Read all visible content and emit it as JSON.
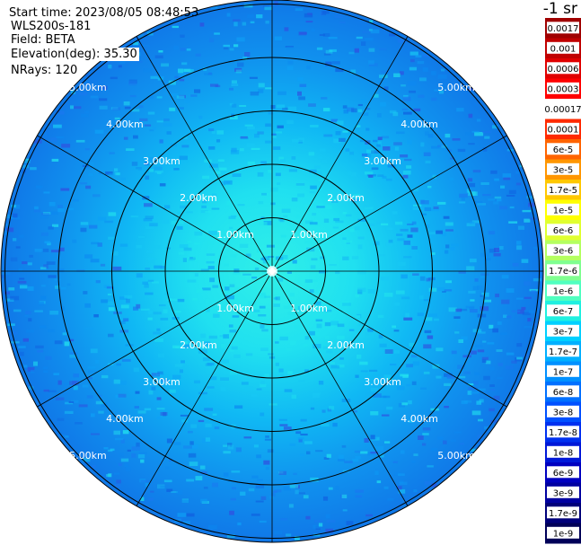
{
  "header": {
    "start_time": "Start time: 2023/08/05 08:48:53",
    "instrument": "WLS200s-181",
    "field": "Field: BETA",
    "elevation": "Elevation(deg): 35.30",
    "nrays": "NRays: 120"
  },
  "unit_label": "-1 sr",
  "range_labels": [
    "1.00km",
    "2.00km",
    "3.00km",
    "4.00km",
    "5.00km"
  ],
  "colorbar": {
    "labels": [
      "0.0017",
      "0.001",
      "0.0006",
      "0.0003",
      "0.00017",
      "0.0001",
      "6e-5",
      "3e-5",
      "1.7e-5",
      "1e-5",
      "6e-6",
      "3e-6",
      "1.7e-6",
      "1e-6",
      "6e-7",
      "3e-7",
      "1.7e-7",
      "1e-7",
      "6e-8",
      "3e-8",
      "1.7e-8",
      "1e-8",
      "6e-9",
      "3e-9",
      "1.7e-9",
      "1e-9"
    ],
    "colors": [
      "#a00000",
      "#c00000",
      "#e00000",
      "#ff0000",
      "#ffffff",
      "#ff2a00",
      "#ff6400",
      "#ff9600",
      "#ffc800",
      "#ffff00",
      "#e0ff30",
      "#b4ff60",
      "#80ff90",
      "#50ffc0",
      "#20f0e0",
      "#00d0ff",
      "#00b0ff",
      "#0090ff",
      "#0070ff",
      "#0050ff",
      "#0030f0",
      "#0018d8",
      "#0000c0",
      "#0000a0",
      "#00007a",
      "#000058"
    ]
  }
}
